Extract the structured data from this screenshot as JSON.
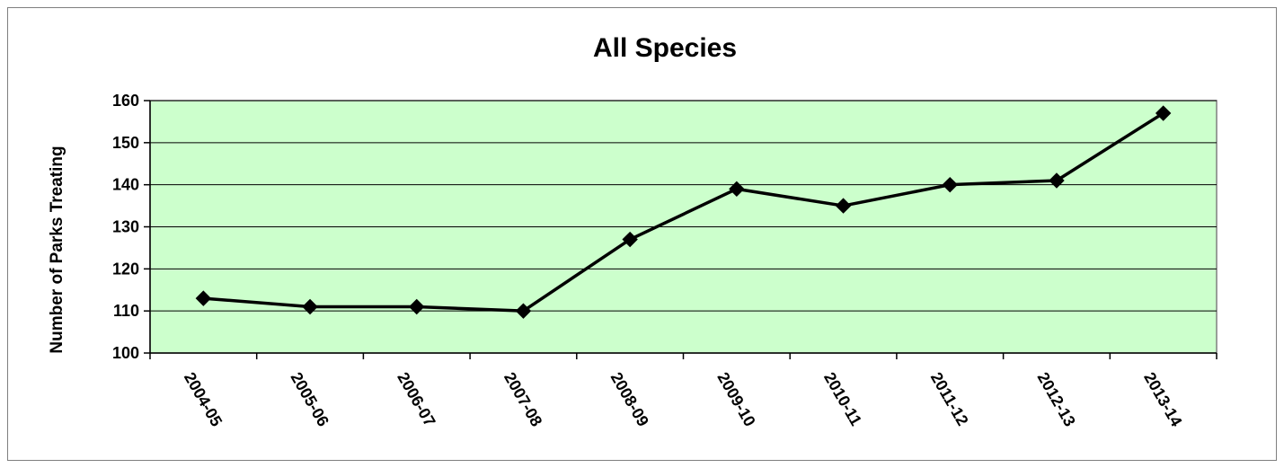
{
  "chart_data": {
    "type": "line",
    "title": "All Species",
    "xlabel": "",
    "ylabel": "Number of Parks Treating",
    "categories": [
      "2004-05",
      "2005-06",
      "2006-07",
      "2007-08",
      "2008-09",
      "2009-10",
      "2010-11",
      "2011-12",
      "2012-13",
      "2013-14"
    ],
    "series": [
      {
        "values": [
          113,
          111,
          111,
          110,
          127,
          139,
          135,
          140,
          141,
          157
        ]
      }
    ],
    "ylim": [
      100,
      160
    ],
    "yticks": [
      100,
      110,
      120,
      130,
      140,
      150,
      160
    ],
    "grid": true,
    "legend": "none",
    "colors": {
      "plot_background": "#ccffcc",
      "line": "#000000",
      "marker": "#000000",
      "gridline": "#000000"
    }
  }
}
